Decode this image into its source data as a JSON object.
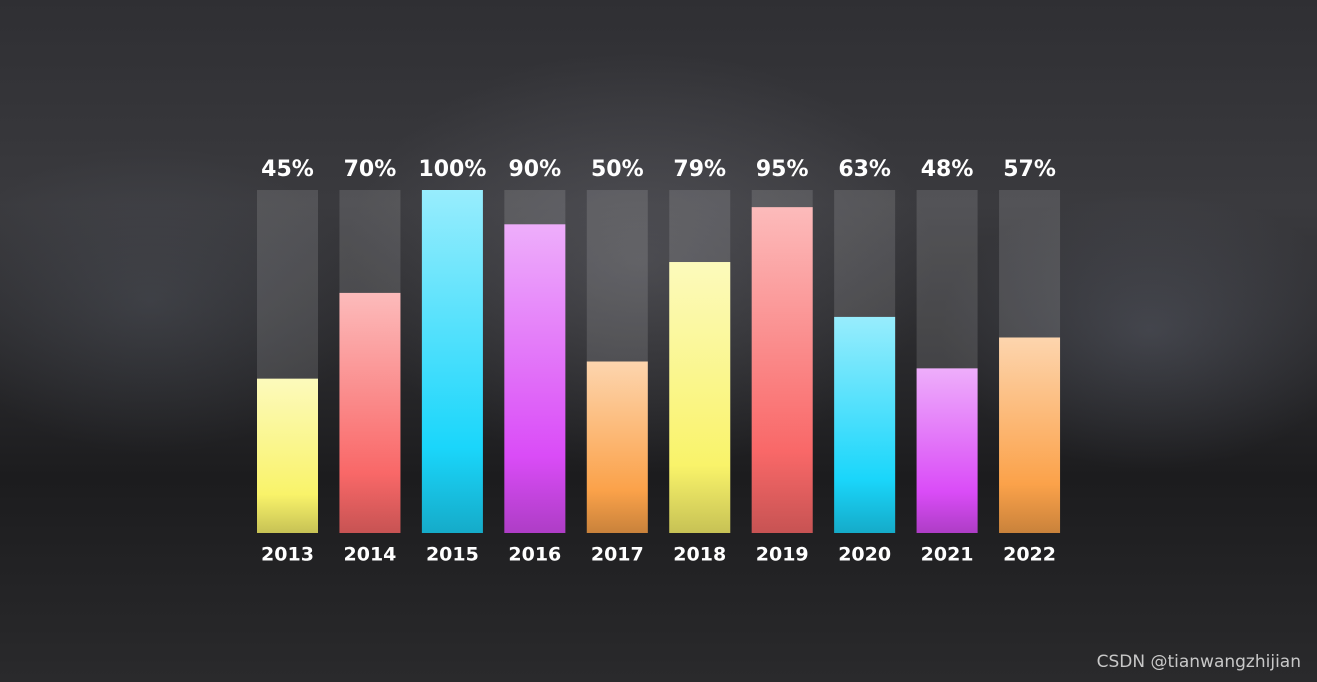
{
  "chart_data": {
    "type": "bar",
    "categories": [
      "2013",
      "2014",
      "2015",
      "2016",
      "2017",
      "2018",
      "2019",
      "2020",
      "2021",
      "2022"
    ],
    "values": [
      45,
      70,
      100,
      90,
      50,
      79,
      95,
      63,
      48,
      57
    ],
    "value_labels": [
      "45%",
      "70%",
      "100%",
      "90%",
      "50%",
      "79%",
      "95%",
      "63%",
      "48%",
      "57%"
    ],
    "colors": [
      "#f9f36a",
      "#f96868",
      "#1ad6fb",
      "#da4cf7",
      "#fba24a",
      "#f9f36a",
      "#f96868",
      "#1ad6fb",
      "#da4cf7",
      "#fba24a"
    ],
    "ylim": [
      0,
      100
    ]
  },
  "watermark": "CSDN @tianwangzhijian"
}
